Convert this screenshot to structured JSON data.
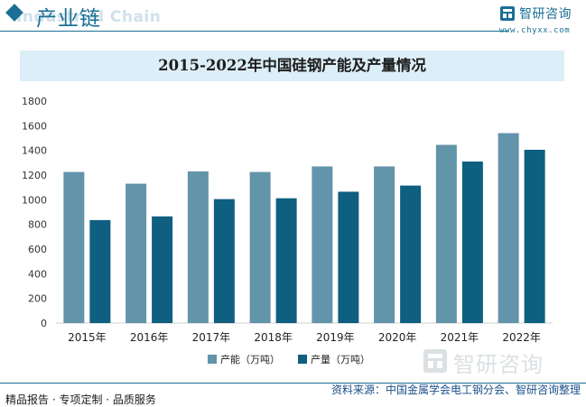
{
  "header": {
    "title": "产业链",
    "ghost_text": "Industrial Chain",
    "brand_name": "智研咨询",
    "brand_url": "www.chyxx.com"
  },
  "watermark": {
    "text": "智研咨询"
  },
  "footer": {
    "left": "精品报告 · 专项定制 · 品质服务",
    "source": "资料来源：中国金属学会电工钢分会、智研咨询整理"
  },
  "colors": {
    "capacity": "#6294aa",
    "output": "#0e5f80",
    "brand": "#1b6f95"
  },
  "chart_data": {
    "type": "bar",
    "title": "2015-2022年中国硅钢产能及产量情况",
    "categories": [
      "2015年",
      "2016年",
      "2017年",
      "2018年",
      "2019年",
      "2020年",
      "2021年",
      "2022年"
    ],
    "series": [
      {
        "name": "产能（万吨）",
        "values": [
          1225,
          1130,
          1230,
          1225,
          1270,
          1270,
          1445,
          1540
        ]
      },
      {
        "name": "产量（万吨）",
        "values": [
          835,
          865,
          1005,
          1012,
          1065,
          1115,
          1310,
          1405
        ]
      }
    ],
    "ylim": [
      0,
      1800
    ],
    "yticks": [
      0,
      200,
      400,
      600,
      800,
      1000,
      1200,
      1400,
      1600,
      1800
    ],
    "grid": false,
    "legend": "bottom"
  }
}
